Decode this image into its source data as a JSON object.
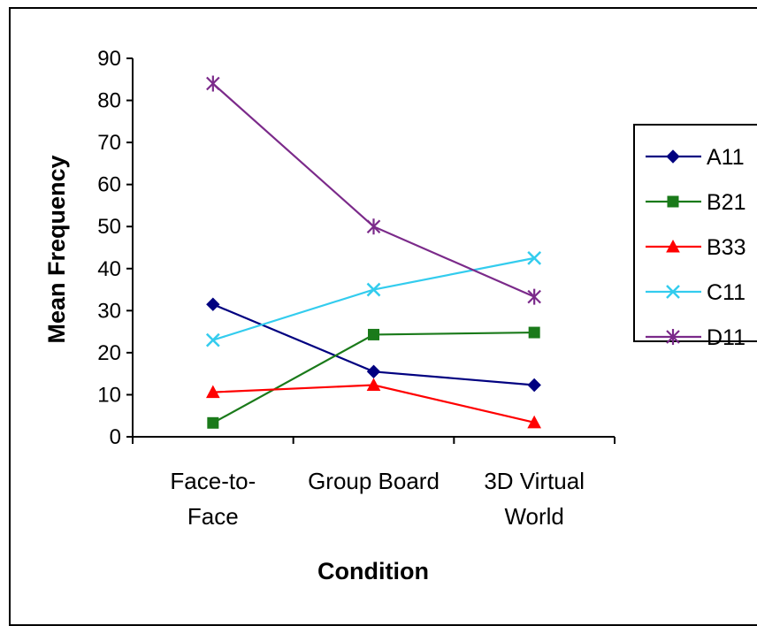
{
  "chart_data": {
    "type": "line",
    "title": "",
    "xlabel": "Condition",
    "ylabel": "Mean Frequency",
    "ylim": [
      0,
      90
    ],
    "yticks": [
      0,
      10,
      20,
      30,
      40,
      50,
      60,
      70,
      80,
      90
    ],
    "categories": [
      [
        "Face-to-",
        "Face"
      ],
      [
        "Group Board"
      ],
      [
        "3D Virtual",
        "World"
      ]
    ],
    "legend_position": "right",
    "grid": false,
    "series": [
      {
        "name": "A11",
        "values": [
          31.5,
          15.5,
          12.3
        ],
        "color": "#000080",
        "marker": "diamond"
      },
      {
        "name": "B21",
        "values": [
          3.3,
          24.3,
          24.8
        ],
        "color": "#1a7a1a",
        "marker": "square"
      },
      {
        "name": "B33",
        "values": [
          10.6,
          12.3,
          3.4
        ],
        "color": "#ff0000",
        "marker": "triangle"
      },
      {
        "name": "C11",
        "values": [
          23.0,
          35.0,
          42.5
        ],
        "color": "#33ccee",
        "marker": "x"
      },
      {
        "name": "D11",
        "values": [
          84.0,
          50.0,
          33.3
        ],
        "color": "#7b2a8a",
        "marker": "star"
      }
    ]
  }
}
